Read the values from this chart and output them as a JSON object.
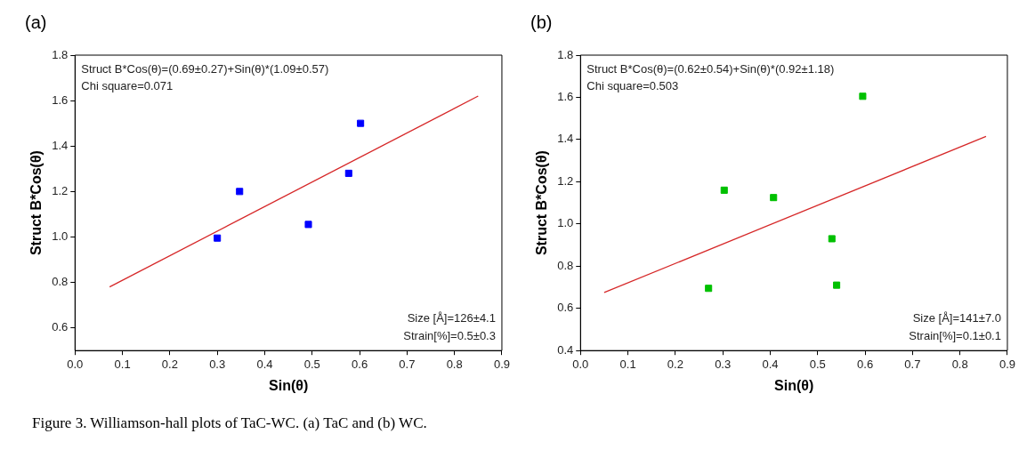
{
  "chart_data": [
    {
      "type": "scatter",
      "title": "(a)",
      "xlabel": "Sin(θ)",
      "ylabel": "Struct B*Cos(θ)",
      "xlim": [
        0,
        0.9
      ],
      "xticks": [
        {
          "value": 0,
          "label": "0.0"
        },
        0.1,
        0.2,
        0.3,
        0.4,
        0.5,
        0.6,
        0.7,
        0.8,
        0.9
      ],
      "ylim": [
        0.5,
        1.8
      ],
      "yticks": [
        0.6,
        0.8,
        {
          "value": 1,
          "label": "1.0"
        },
        1.2,
        1.4,
        1.6,
        1.8
      ],
      "grid": false,
      "legend": false,
      "marker": "square",
      "annotations": [
        "Struct B*Cos(θ)=(0.69±0.27)+Sin(θ)*(1.09±0.57)",
        "Chi square=0.071",
        "Size [Å]=126±4.1",
        "Strain[%]=0.5±0.3",
        "Figure 3. Williamson-hall plots of TaC-WC. (a) TaC and (b) WC."
      ],
      "series": [
        {
          "color": "#0000ff",
          "x": [
            0.3,
            0.347,
            0.492,
            0.577,
            0.602
          ],
          "values": [
            0.995,
            1.2,
            1.055,
            1.28,
            1.5
          ]
        },
        {
          "type": "line",
          "color": "#d62728",
          "marker": "none",
          "x": [
            0.073,
            0.85
          ],
          "values": [
            0.78,
            1.62
          ]
        }
      ]
    },
    {
      "type": "scatter",
      "title": "(b)",
      "xlabel": "Sin(θ)",
      "ylabel": "Struct B*Cos(θ)",
      "xlim": [
        0,
        0.9
      ],
      "xticks": [
        {
          "value": 0,
          "label": "0.0"
        },
        0.1,
        0.2,
        0.3,
        0.4,
        0.5,
        0.6,
        0.7,
        0.8,
        0.9
      ],
      "ylim": [
        0.4,
        1.8
      ],
      "yticks": [
        0.4,
        0.6,
        0.8,
        {
          "value": 1,
          "label": "1.0"
        },
        1.2,
        1.4,
        1.6,
        1.8
      ],
      "grid": false,
      "legend": false,
      "marker": "square",
      "annotations": [
        "Struct B*Cos(θ)=(0.62±0.54)+Sin(θ)*(0.92±1.18)",
        "Chi square=0.503",
        "Size [Å]=141±7.0",
        "Strain[%]=0.1±0.1"
      ],
      "series": [
        {
          "color": "#00c000",
          "x": [
            0.27,
            0.303,
            0.407,
            0.53,
            0.54,
            0.595
          ],
          "values": [
            0.695,
            1.16,
            1.125,
            0.93,
            0.71,
            1.605
          ]
        },
        {
          "type": "line",
          "color": "#d62728",
          "marker": "none",
          "x": [
            0.05,
            0.855
          ],
          "values": [
            0.675,
            1.415
          ]
        }
      ]
    }
  ]
}
